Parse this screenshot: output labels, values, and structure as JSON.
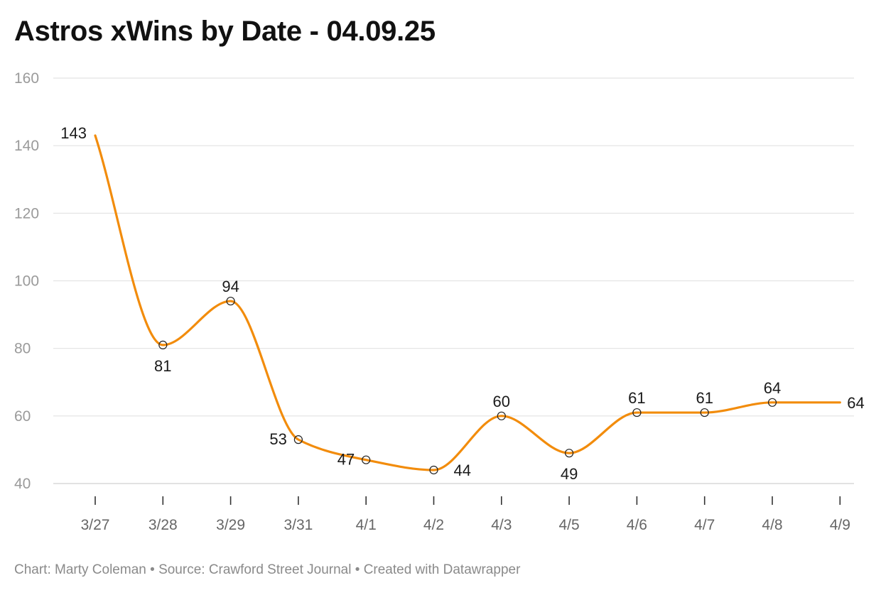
{
  "chart_data": {
    "type": "line",
    "title": "Astros xWins by Date - 04.09.25",
    "xlabel": "",
    "ylabel": "",
    "categories": [
      "3/27",
      "3/28",
      "3/29",
      "3/31",
      "4/1",
      "4/2",
      "4/3",
      "4/5",
      "4/6",
      "4/7",
      "4/8",
      "4/9"
    ],
    "series": [
      {
        "values": [
          143,
          81,
          94,
          53,
          47,
          44,
          60,
          49,
          61,
          61,
          64,
          64
        ],
        "data_labels": [
          "143",
          "81",
          "94",
          "53",
          "47",
          "44",
          "60",
          "49",
          "61",
          "61",
          "64",
          "64"
        ],
        "color": "#f28c0c"
      }
    ],
    "ylim": [
      40,
      160
    ],
    "yticks": [
      40,
      60,
      80,
      100,
      120,
      140,
      160
    ],
    "ytick_labels": [
      "40",
      "60",
      "80",
      "100",
      "120",
      "140",
      "160"
    ],
    "grid": true,
    "legend": "none"
  },
  "footer": {
    "chart_credit": "Chart: Marty Coleman",
    "source": "Source: Crawford Street Journal",
    "created_with": "Created with Datawrapper",
    "separator": "•"
  },
  "colors": {
    "line": "#f28c0c",
    "gridline": "#e3e3e3",
    "axis_label": "#9a9a9a",
    "x_tick_label": "#666666",
    "data_label": "#1a1a1a",
    "title": "#111111"
  }
}
